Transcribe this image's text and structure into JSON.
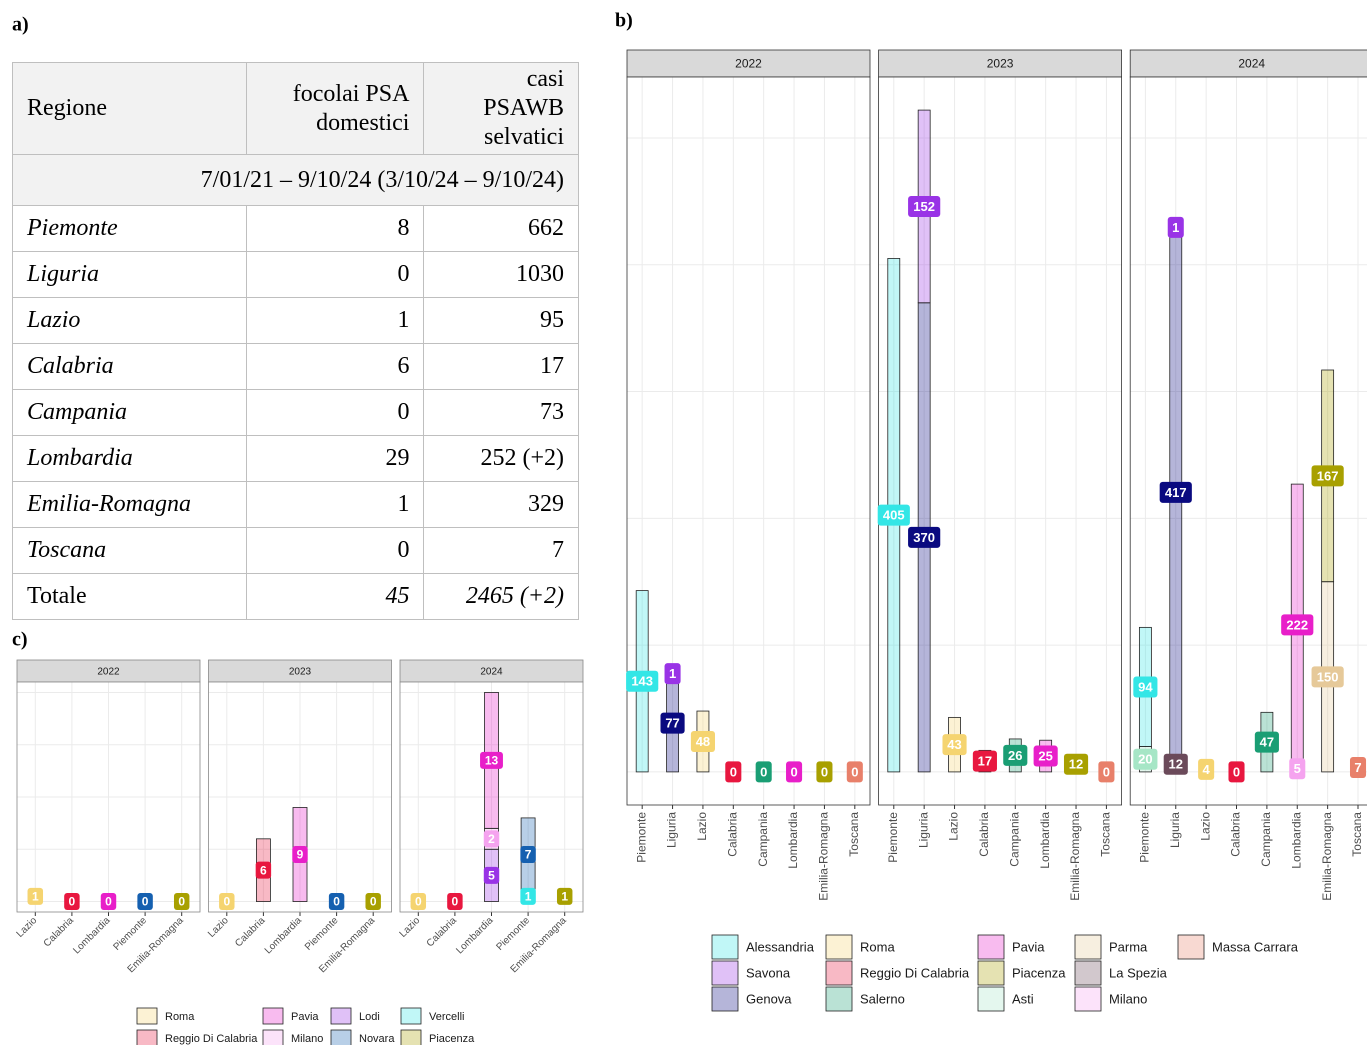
{
  "table": {
    "panel_label": "a)",
    "header": [
      "Regione",
      "focolai PSA\ndomestici",
      "casi\nPSAWB\nselvatici"
    ],
    "period": "7/01/21 – 9/10/24 (3/10/24 – 9/10/24)",
    "rows": [
      [
        "Piemonte",
        "8",
        "662"
      ],
      [
        "Liguria",
        "0",
        "1030"
      ],
      [
        "Lazio",
        "1",
        "95"
      ],
      [
        "Calabria",
        "6",
        "17"
      ],
      [
        "Campania",
        "0",
        "73"
      ],
      [
        "Lombardia",
        "29",
        "252 (+2)"
      ],
      [
        "Emilia-Romagna",
        "1",
        "329"
      ],
      [
        "Toscana",
        "0",
        "7"
      ],
      [
        "Totale",
        "45",
        "2465 (+2)"
      ]
    ]
  },
  "chart_data": [
    {
      "type": "bar",
      "panel_label": "b)",
      "facets": [
        "2022",
        "2023",
        "2024"
      ],
      "categories": [
        "Piemonte",
        "Liguria",
        "Lazio",
        "Calabria",
        "Campania",
        "Lombardia",
        "Emilia-Romagna",
        "Toscana"
      ],
      "ylim": [
        -26.1,
        548.1
      ],
      "yticks": [
        0,
        100,
        200,
        300,
        400,
        500
      ],
      "grid": true,
      "series": [
        {
          "name": "Alessandria",
          "color": "#33e6e6",
          "values": [
            [
              143,
              null,
              null,
              null,
              null,
              null,
              null,
              null
            ],
            [
              405,
              null,
              null,
              null,
              null,
              null,
              null,
              null
            ],
            [
              94,
              null,
              null,
              null,
              null,
              null,
              null,
              null
            ]
          ]
        },
        {
          "name": "Savona",
          "color": "#9933e6",
          "values": [
            [
              null,
              1,
              null,
              null,
              null,
              null,
              null,
              null
            ],
            [
              null,
              152,
              null,
              null,
              null,
              null,
              null,
              null
            ],
            [
              null,
              1,
              null,
              null,
              null,
              null,
              null,
              null
            ]
          ]
        },
        {
          "name": "Genova",
          "color": "#0a0a80",
          "values": [
            [
              null,
              77,
              null,
              null,
              null,
              null,
              null,
              null
            ],
            [
              null,
              370,
              null,
              null,
              null,
              null,
              null,
              null
            ],
            [
              null,
              417,
              null,
              null,
              null,
              null,
              null,
              null
            ]
          ]
        },
        {
          "name": "Roma",
          "color": "#f5d470",
          "values": [
            [
              null,
              null,
              48,
              null,
              null,
              null,
              null,
              null
            ],
            [
              null,
              null,
              43,
              null,
              null,
              null,
              null,
              null
            ],
            [
              null,
              null,
              4,
              null,
              null,
              null,
              null,
              null
            ]
          ]
        },
        {
          "name": "Reggio Di Calabria",
          "color": "#e8173f",
          "values": [
            [
              null,
              null,
              null,
              0,
              null,
              null,
              null,
              null
            ],
            [
              null,
              null,
              null,
              17,
              null,
              null,
              null,
              null
            ],
            [
              null,
              null,
              null,
              0,
              null,
              null,
              null,
              null
            ]
          ]
        },
        {
          "name": "Salerno",
          "color": "#1a9e74",
          "values": [
            [
              null,
              null,
              null,
              null,
              0,
              null,
              null,
              null
            ],
            [
              null,
              null,
              null,
              null,
              26,
              null,
              null,
              null
            ],
            [
              null,
              null,
              null,
              null,
              47,
              null,
              null,
              null
            ]
          ]
        },
        {
          "name": "Pavia",
          "color": "#e81fc9",
          "values": [
            [
              null,
              null,
              null,
              null,
              null,
              0,
              null,
              null
            ],
            [
              null,
              null,
              null,
              null,
              null,
              25,
              null,
              null
            ],
            [
              null,
              null,
              null,
              null,
              null,
              222,
              null,
              null
            ]
          ]
        },
        {
          "name": "Piacenza",
          "color": "#a8a000",
          "values": [
            [
              null,
              null,
              null,
              null,
              null,
              null,
              0,
              null
            ],
            [
              null,
              null,
              null,
              null,
              null,
              null,
              12,
              null
            ],
            [
              null,
              null,
              null,
              null,
              null,
              null,
              167,
              null
            ]
          ]
        },
        {
          "name": "Asti",
          "color": "#a6e6c6",
          "values": [
            [
              null,
              null,
              null,
              null,
              null,
              null,
              null,
              null
            ],
            [
              null,
              null,
              null,
              null,
              null,
              null,
              null,
              null
            ],
            [
              20,
              null,
              null,
              null,
              null,
              null,
              null,
              null
            ]
          ]
        },
        {
          "name": "Parma",
          "color": "#e6c999",
          "values": [
            [
              null,
              null,
              null,
              null,
              null,
              null,
              null,
              null
            ],
            [
              null,
              null,
              null,
              null,
              null,
              null,
              null,
              null
            ],
            [
              null,
              null,
              null,
              null,
              null,
              null,
              150,
              null
            ]
          ]
        },
        {
          "name": "La Spezia",
          "color": "#6b4a5a",
          "values": [
            [
              null,
              null,
              null,
              null,
              null,
              null,
              null,
              null
            ],
            [
              null,
              null,
              null,
              null,
              null,
              null,
              null,
              null
            ],
            [
              null,
              12,
              null,
              null,
              null,
              null,
              null,
              null
            ]
          ]
        },
        {
          "name": "Milano",
          "color": "#f5a3ef",
          "values": [
            [
              null,
              null,
              null,
              null,
              null,
              null,
              null,
              null
            ],
            [
              null,
              null,
              null,
              null,
              null,
              null,
              null,
              null
            ],
            [
              null,
              null,
              null,
              null,
              null,
              5,
              null,
              null
            ]
          ]
        },
        {
          "name": "Massa Carrara",
          "color": "#e8806a",
          "values": [
            [
              null,
              null,
              null,
              null,
              null,
              null,
              null,
              0
            ],
            [
              null,
              null,
              null,
              null,
              null,
              null,
              null,
              0
            ],
            [
              null,
              null,
              null,
              null,
              null,
              null,
              null,
              7
            ]
          ]
        }
      ]
    },
    {
      "type": "bar",
      "panel_label": "c)",
      "facets": [
        "2022",
        "2023",
        "2024"
      ],
      "categories": [
        "Lazio",
        "Calabria",
        "Lombardia",
        "Piemonte",
        "Emilia-Romagna"
      ],
      "ylim": [
        -1,
        21
      ],
      "yticks": [
        0,
        5,
        10,
        15,
        20
      ],
      "grid": true,
      "series": [
        {
          "name": "Roma",
          "color": "#f5d470",
          "values": [
            [
              1,
              null,
              null,
              null,
              null
            ],
            [
              0,
              null,
              null,
              null,
              null
            ],
            [
              0,
              null,
              null,
              null,
              null
            ]
          ]
        },
        {
          "name": "Reggio Di Calabria",
          "color": "#e8173f",
          "values": [
            [
              null,
              0,
              null,
              null,
              null
            ],
            [
              null,
              6,
              null,
              null,
              null
            ],
            [
              null,
              0,
              null,
              null,
              null
            ]
          ]
        },
        {
          "name": "Pavia",
          "color": "#e81fc9",
          "values": [
            [
              null,
              null,
              0,
              null,
              null
            ],
            [
              null,
              null,
              9,
              null,
              null
            ],
            [
              null,
              null,
              13,
              null,
              null
            ]
          ]
        },
        {
          "name": "Milano",
          "color": "#f5a3ef",
          "values": [
            [
              null,
              null,
              null,
              null,
              null
            ],
            [
              null,
              null,
              null,
              null,
              null
            ],
            [
              null,
              null,
              2,
              null,
              null
            ]
          ]
        },
        {
          "name": "Lodi",
          "color": "#9933e6",
          "values": [
            [
              null,
              null,
              null,
              null,
              null
            ],
            [
              null,
              null,
              null,
              null,
              null
            ],
            [
              null,
              null,
              5,
              null,
              null
            ]
          ]
        },
        {
          "name": "Novara",
          "color": "#1560b0",
          "values": [
            [
              null,
              null,
              null,
              0,
              null
            ],
            [
              null,
              null,
              null,
              0,
              null
            ],
            [
              null,
              null,
              null,
              7,
              null
            ]
          ]
        },
        {
          "name": "Vercelli",
          "color": "#33e6e6",
          "values": [
            [
              null,
              null,
              null,
              null,
              null
            ],
            [
              null,
              null,
              null,
              null,
              null
            ],
            [
              null,
              null,
              null,
              1,
              null
            ]
          ]
        },
        {
          "name": "Piacenza",
          "color": "#a8a000",
          "values": [
            [
              null,
              null,
              null,
              null,
              0
            ],
            [
              null,
              null,
              null,
              null,
              0
            ],
            [
              null,
              null,
              null,
              null,
              1
            ]
          ]
        }
      ]
    }
  ]
}
